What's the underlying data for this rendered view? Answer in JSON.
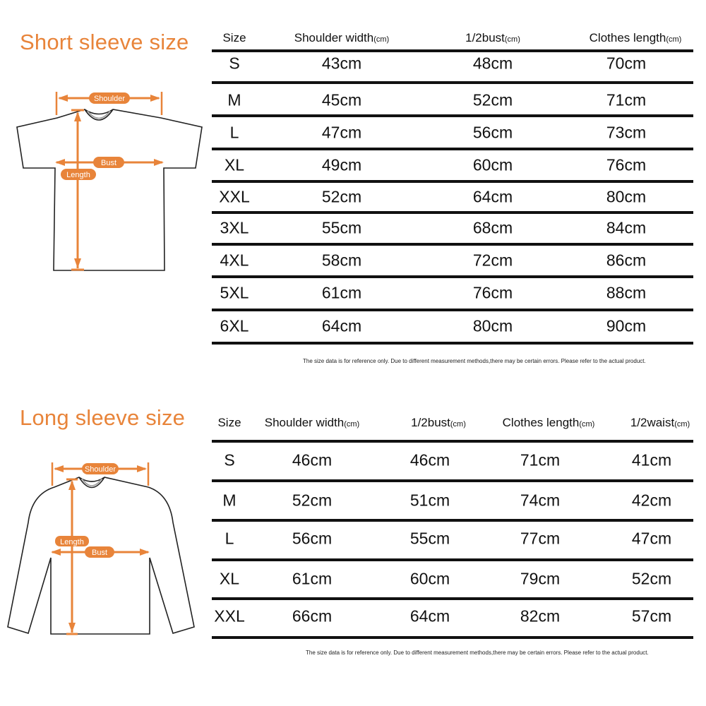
{
  "accent_color": "#e8843a",
  "short_sleeve": {
    "title": "Short sleeve size",
    "diagram_labels": {
      "shoulder": "Shoulder",
      "bust": "Bust",
      "length": "Length"
    },
    "headers": [
      {
        "label": "Size",
        "unit": ""
      },
      {
        "label": "Shoulder width",
        "unit": "(cm)"
      },
      {
        "label": "1/2bust",
        "unit": "(cm)"
      },
      {
        "label": "Clothes length",
        "unit": "(cm)"
      }
    ],
    "rows": [
      [
        "S",
        "43cm",
        "48cm",
        "70cm"
      ],
      [
        "M",
        "45cm",
        "52cm",
        "71cm"
      ],
      [
        "L",
        "47cm",
        "56cm",
        "73cm"
      ],
      [
        "XL",
        "49cm",
        "60cm",
        "76cm"
      ],
      [
        "XXL",
        "52cm",
        "64cm",
        "80cm"
      ],
      [
        "3XL",
        "55cm",
        "68cm",
        "84cm"
      ],
      [
        "4XL",
        "58cm",
        "72cm",
        "86cm"
      ],
      [
        "5XL",
        "61cm",
        "76cm",
        "88cm"
      ],
      [
        "6XL",
        "64cm",
        "80cm",
        "90cm"
      ]
    ],
    "note": "The size data is for reference only. Due to different measurement methods,there may be certain errors. Please refer to the actual product."
  },
  "long_sleeve": {
    "title": "Long sleeve size",
    "diagram_labels": {
      "shoulder": "Shoulder",
      "bust": "Bust",
      "length": "Length"
    },
    "headers": [
      {
        "label": "Size",
        "unit": ""
      },
      {
        "label": "Shoulder width",
        "unit": "(cm)"
      },
      {
        "label": "1/2bust",
        "unit": "(cm)"
      },
      {
        "label": "Clothes length",
        "unit": "(cm)"
      },
      {
        "label": "1/2waist",
        "unit": "(cm)"
      }
    ],
    "rows": [
      [
        "S",
        "46cm",
        "46cm",
        "71cm",
        "41cm"
      ],
      [
        "M",
        "52cm",
        "51cm",
        "74cm",
        "42cm"
      ],
      [
        "L",
        "56cm",
        "55cm",
        "77cm",
        "47cm"
      ],
      [
        "XL",
        "61cm",
        "60cm",
        "79cm",
        "52cm"
      ],
      [
        "XXL",
        "66cm",
        "64cm",
        "82cm",
        "57cm"
      ]
    ],
    "note": "The size data is for reference only. Due to different measurement methods,there may be certain errors. Please refer to the actual product."
  }
}
